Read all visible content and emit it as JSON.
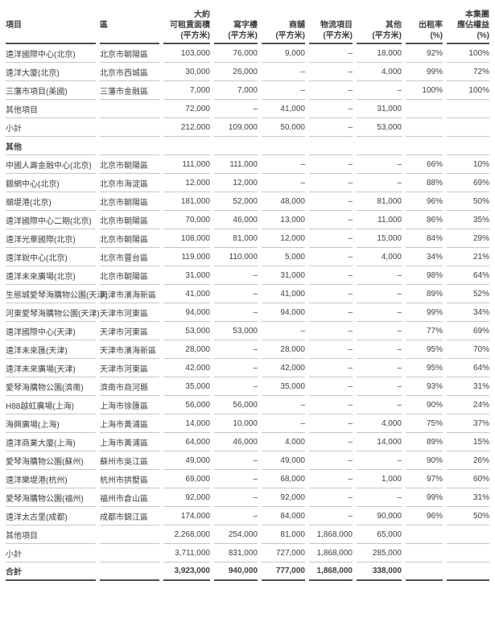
{
  "colors": {
    "text": "#3f3f3f",
    "rule_light": "#c6c6c6",
    "rule_dark": "#4f4f4f"
  },
  "table": {
    "columns": [
      {
        "id": "project",
        "lines": [
          "項目"
        ],
        "align": "left"
      },
      {
        "id": "district",
        "lines": [
          "區"
        ],
        "align": "left"
      },
      {
        "id": "lettable-area",
        "lines": [
          "大約",
          "可租賃面積",
          "(平方米)"
        ],
        "align": "right"
      },
      {
        "id": "office",
        "lines": [
          "寫字樓",
          "(平方米)"
        ],
        "align": "right"
      },
      {
        "id": "retail",
        "lines": [
          "商舖",
          "(平方米)"
        ],
        "align": "right"
      },
      {
        "id": "logistics",
        "lines": [
          "物流項目",
          "(平方米)"
        ],
        "align": "right"
      },
      {
        "id": "others",
        "lines": [
          "其他",
          "(平方米)"
        ],
        "align": "right"
      },
      {
        "id": "occupancy",
        "lines": [
          "出租率",
          "(%)"
        ],
        "align": "right"
      },
      {
        "id": "group-interest",
        "lines": [
          "本集團",
          "應佔權益",
          "(%)"
        ],
        "align": "right"
      }
    ],
    "rows": [
      {
        "type": "data",
        "cells": [
          "遠洋國際中心(北京)",
          "北京市朝陽區",
          "103,000",
          "76,000",
          "9,000",
          "–",
          "18,000",
          "92%",
          "100%"
        ]
      },
      {
        "type": "data",
        "cells": [
          "遠洋大廈(北京)",
          "北京市西城區",
          "30,000",
          "26,000",
          "–",
          "–",
          "4,000",
          "99%",
          "72%"
        ]
      },
      {
        "type": "data",
        "cells": [
          "三藩市項目(美國)",
          "三藩市金融區",
          "7,000",
          "7,000",
          "–",
          "–",
          "–",
          "100%",
          "100%"
        ]
      },
      {
        "type": "data",
        "cells": [
          "其他項目",
          "",
          "72,000",
          "–",
          "41,000",
          "–",
          "31,000",
          "",
          ""
        ]
      },
      {
        "type": "subtotal",
        "cells": [
          "小計",
          "",
          "212,000",
          "109,000",
          "50,000",
          "–",
          "53,000",
          "",
          ""
        ]
      },
      {
        "type": "section",
        "cells": [
          "其他",
          "",
          "",
          "",
          "",
          "",
          "",
          "",
          ""
        ]
      },
      {
        "type": "data",
        "cells": [
          "中國人壽金融中心(北京)",
          "北京市朝陽區",
          "111,000",
          "111,000",
          "–",
          "–",
          "–",
          "66%",
          "10%"
        ]
      },
      {
        "type": "data",
        "cells": [
          "銀網中心(北京)",
          "北京市海淀區",
          "12,000",
          "12,000",
          "–",
          "–",
          "–",
          "88%",
          "69%"
        ]
      },
      {
        "type": "data",
        "cells": [
          "頤堤港(北京)",
          "北京市朝陽區",
          "181,000",
          "52,000",
          "48,000",
          "–",
          "81,000",
          "96%",
          "50%"
        ]
      },
      {
        "type": "data",
        "cells": [
          "遠洋國際中心二期(北京)",
          "北京市朝陽區",
          "70,000",
          "46,000",
          "13,000",
          "–",
          "11,000",
          "86%",
          "35%"
        ]
      },
      {
        "type": "data",
        "cells": [
          "遠洋光華國際(北京)",
          "北京市朝陽區",
          "108,000",
          "81,000",
          "12,000",
          "–",
          "15,000",
          "84%",
          "29%"
        ]
      },
      {
        "type": "data",
        "cells": [
          "遠洋銳中心(北京)",
          "北京市豐台區",
          "119,000",
          "110,000",
          "5,000",
          "–",
          "4,000",
          "34%",
          "21%"
        ]
      },
      {
        "type": "data",
        "cells": [
          "遠洋未來廣場(北京)",
          "北京市朝陽區",
          "31,000",
          "–",
          "31,000",
          "–",
          "–",
          "98%",
          "64%"
        ]
      },
      {
        "type": "data",
        "cells": [
          "生態城愛琴海購物公園(天津)",
          "天津市濱海新區",
          "41,000",
          "–",
          "41,000",
          "–",
          "–",
          "89%",
          "52%"
        ]
      },
      {
        "type": "data",
        "cells": [
          "河東愛琴海購物公園(天津)",
          "天津市河東區",
          "94,000",
          "–",
          "94,000",
          "–",
          "–",
          "99%",
          "34%"
        ]
      },
      {
        "type": "data",
        "cells": [
          "遠洋國際中心(天津)",
          "天津市河東區",
          "53,000",
          "53,000",
          "–",
          "–",
          "–",
          "77%",
          "69%"
        ]
      },
      {
        "type": "data",
        "cells": [
          "遠洋未來匯(天津)",
          "天津市濱海新區",
          "28,000",
          "–",
          "28,000",
          "–",
          "–",
          "95%",
          "70%"
        ]
      },
      {
        "type": "data",
        "cells": [
          "遠洋未來廣場(天津)",
          "天津市河東區",
          "42,000",
          "–",
          "42,000",
          "–",
          "–",
          "95%",
          "64%"
        ]
      },
      {
        "type": "data",
        "cells": [
          "愛琴海購物公園(濟南)",
          "濟南市商河縣",
          "35,000",
          "–",
          "35,000",
          "–",
          "–",
          "93%",
          "31%"
        ]
      },
      {
        "type": "data",
        "cells": [
          "H88越虹廣場(上海)",
          "上海市徐匯區",
          "56,000",
          "56,000",
          "–",
          "–",
          "–",
          "90%",
          "24%"
        ]
      },
      {
        "type": "data",
        "cells": [
          "海興廣場(上海)",
          "上海市黃浦區",
          "14,000",
          "10,000",
          "–",
          "–",
          "4,000",
          "75%",
          "37%"
        ]
      },
      {
        "type": "data",
        "cells": [
          "遠洋商業大廈(上海)",
          "上海市黃浦區",
          "64,000",
          "46,000",
          "4,000",
          "–",
          "14,000",
          "89%",
          "15%"
        ]
      },
      {
        "type": "data",
        "cells": [
          "愛琴海購物公園(蘇州)",
          "蘇州市吳江區",
          "49,000",
          "–",
          "49,000",
          "–",
          "–",
          "90%",
          "26%"
        ]
      },
      {
        "type": "data",
        "cells": [
          "遠洋樂堤港(杭州)",
          "杭州市拱墅區",
          "69,000",
          "–",
          "68,000",
          "–",
          "1,000",
          "97%",
          "60%"
        ]
      },
      {
        "type": "data",
        "cells": [
          "愛琴海購物公園(福州)",
          "福州市倉山區",
          "92,000",
          "–",
          "92,000",
          "–",
          "–",
          "99%",
          "31%"
        ]
      },
      {
        "type": "data",
        "cells": [
          "遠洋太古里(成都)",
          "成都市錦江區",
          "174,000",
          "–",
          "84,000",
          "–",
          "90,000",
          "96%",
          "50%"
        ]
      },
      {
        "type": "data",
        "cells": [
          "其他項目",
          "",
          "2,268,000",
          "254,000",
          "81,000",
          "1,868,000",
          "65,000",
          "",
          ""
        ]
      },
      {
        "type": "subtotal",
        "cells": [
          "小計",
          "",
          "3,711,000",
          "831,000",
          "727,000",
          "1,868,000",
          "285,000",
          "",
          ""
        ]
      },
      {
        "type": "total",
        "cells": [
          "合計",
          "",
          "3,923,000",
          "940,000",
          "777,000",
          "1,868,000",
          "338,000",
          "",
          ""
        ]
      }
    ]
  }
}
